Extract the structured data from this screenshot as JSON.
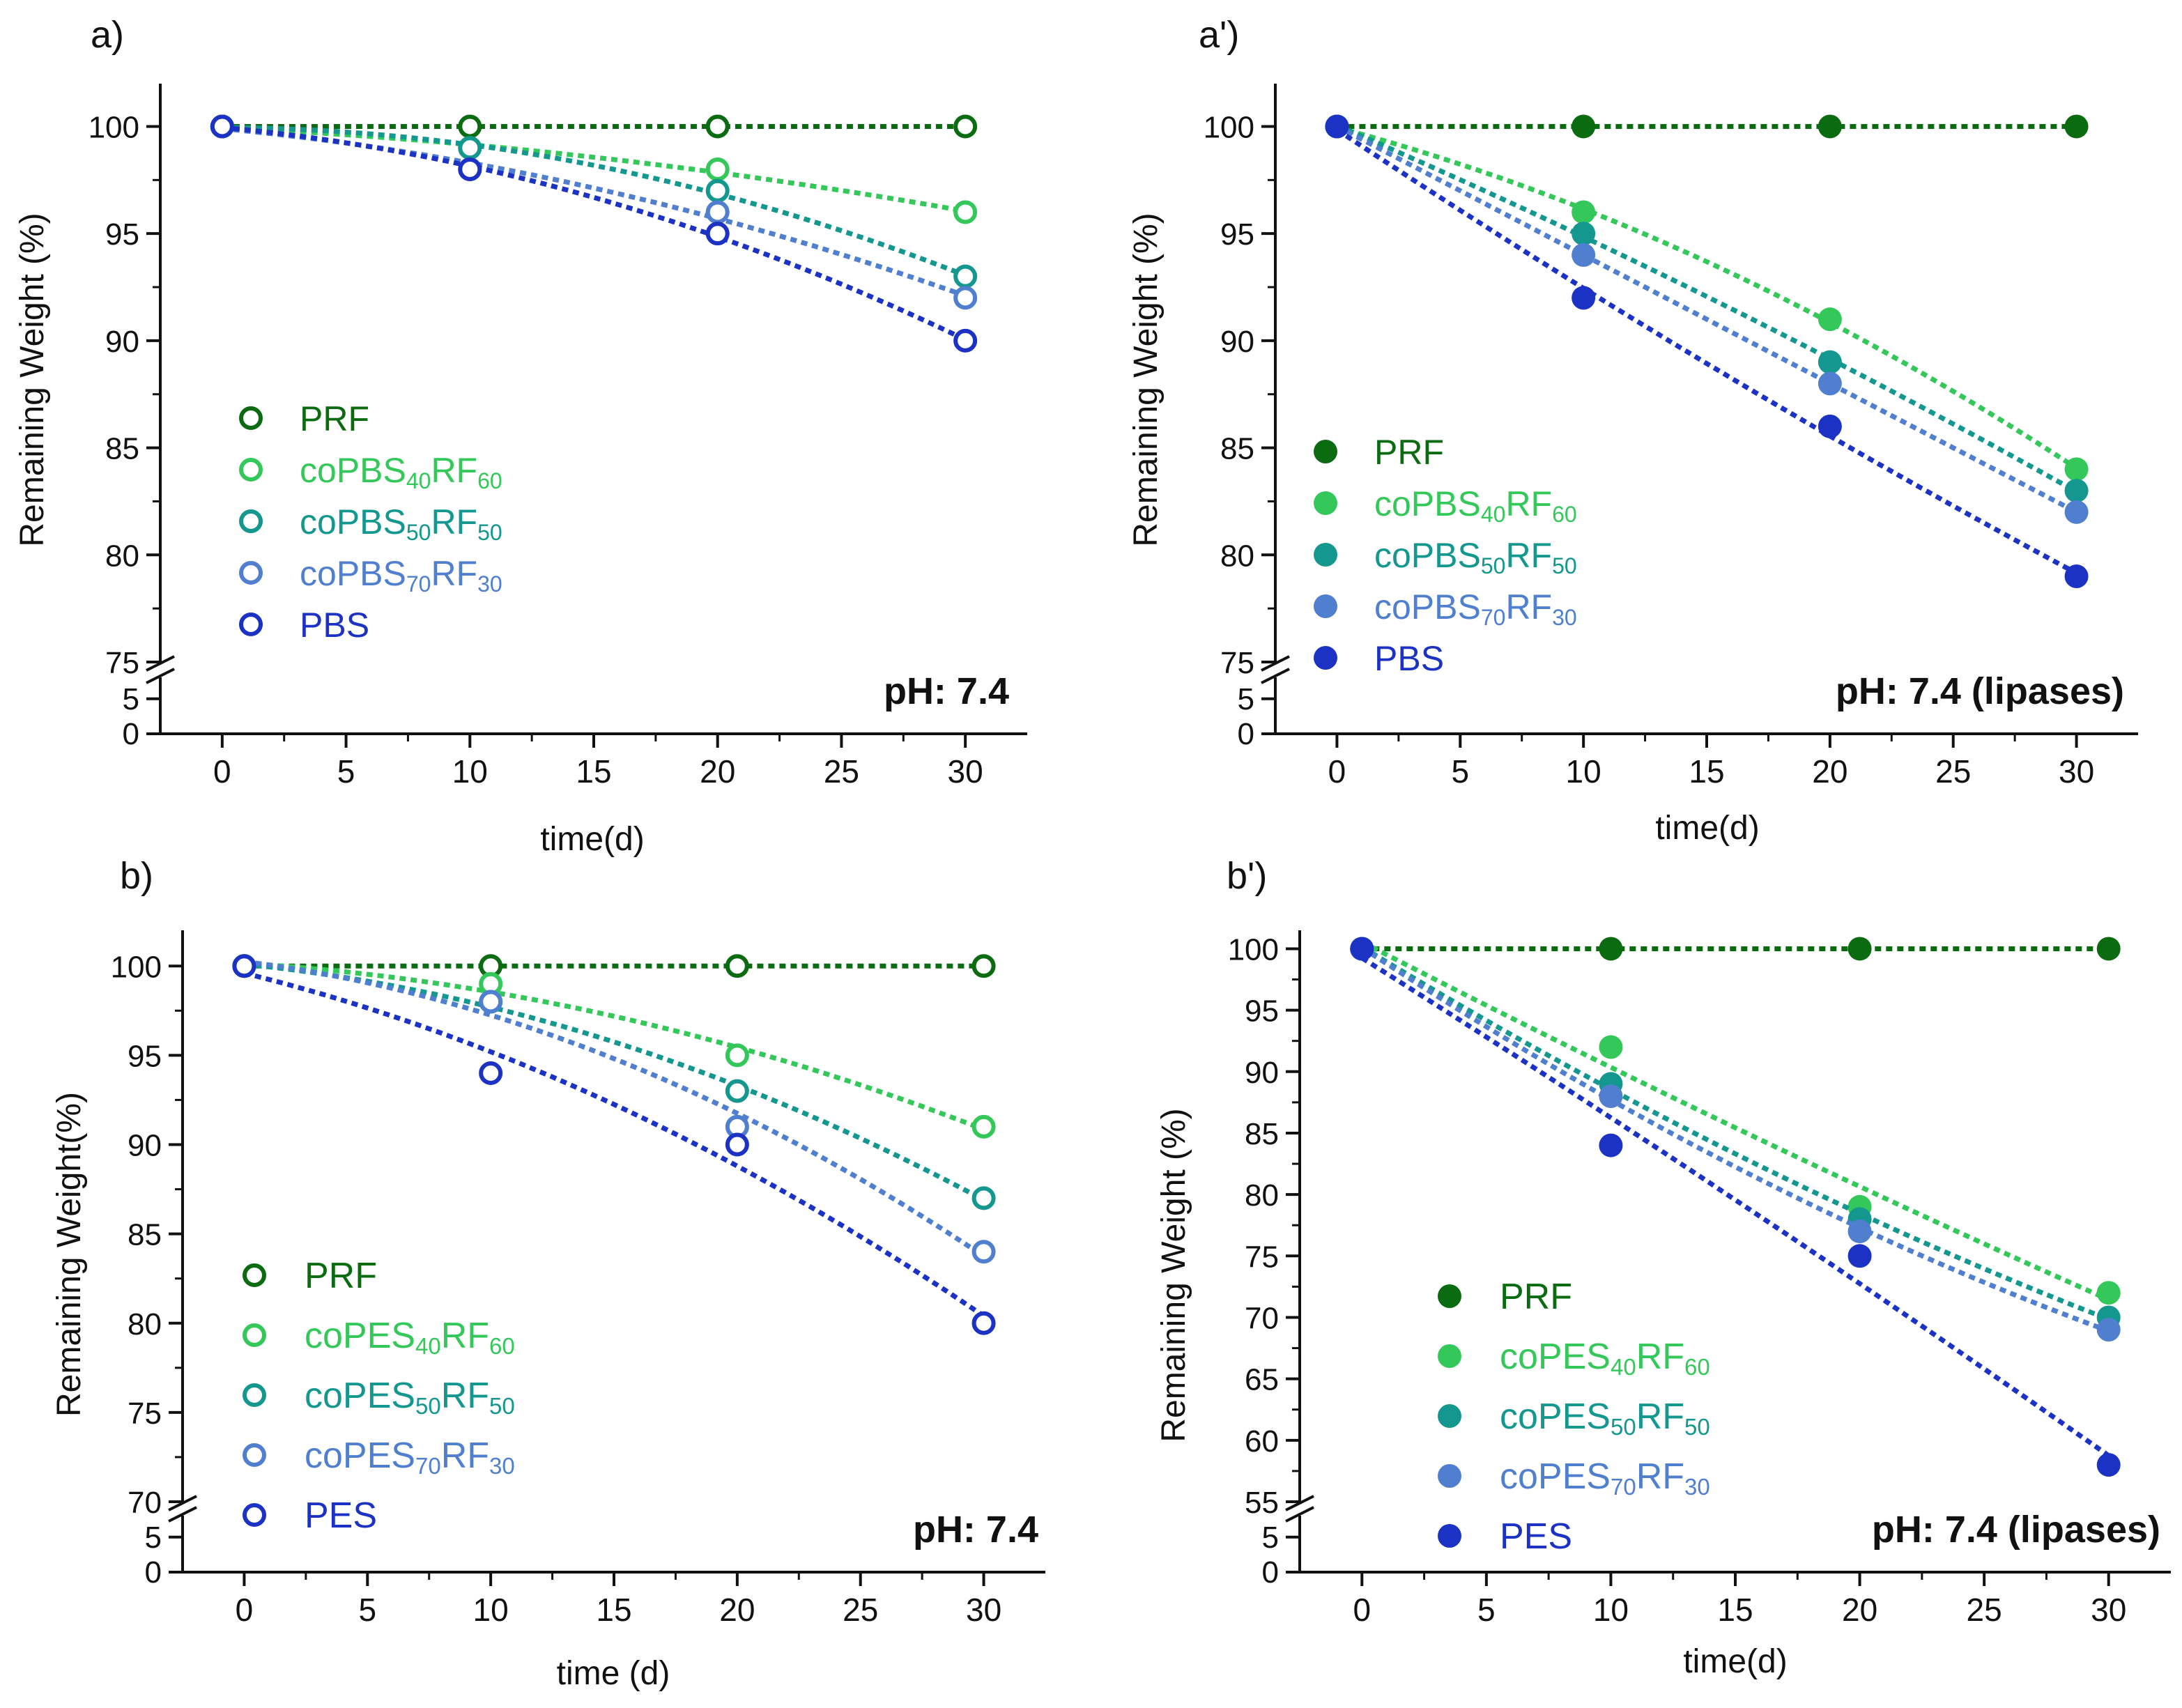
{
  "colors": {
    "PRF": "#0b6b10",
    "c40": "#34c85a",
    "c50": "#13978f",
    "c70": "#4f7fce",
    "base": "#1c32c4"
  },
  "chart_data": [
    {
      "type": "line",
      "panel_label": "a)",
      "xlabel": "time(d)",
      "ylabel": "Remaining Weight (%)",
      "condition": "pH: 7.4",
      "marker": "open",
      "x": [
        0,
        10,
        20,
        30
      ],
      "xlim": [
        -2.5,
        32.5
      ],
      "x_ticks": [
        "0",
        "5",
        "10",
        "15",
        "20",
        "25",
        "30"
      ],
      "y_upper_range": [
        75,
        102
      ],
      "y_upper_ticks": [
        "75",
        "80",
        "85",
        "90",
        "95",
        "100"
      ],
      "y_lower_ticks": [
        "0",
        "5"
      ],
      "series": [
        {
          "name": "PRF",
          "color_key": "PRF",
          "legend_main": "PRF",
          "legend_sub1": "",
          "legend_mid": "",
          "legend_sub2": "",
          "values": [
            100,
            100,
            100,
            100
          ]
        },
        {
          "name": "coPBS40RF60",
          "color_key": "c40",
          "legend_main": "coPBS",
          "legend_sub1": "40",
          "legend_mid": "RF",
          "legend_sub2": "60",
          "values": [
            100,
            99,
            98,
            96
          ]
        },
        {
          "name": "coPBS50RF50",
          "color_key": "c50",
          "legend_main": "coPBS",
          "legend_sub1": "50",
          "legend_mid": "RF",
          "legend_sub2": "50",
          "values": [
            100,
            99,
            97,
            93
          ]
        },
        {
          "name": "coPBS70RF30",
          "color_key": "c70",
          "legend_main": "coPBS",
          "legend_sub1": "70",
          "legend_mid": "RF",
          "legend_sub2": "30",
          "values": [
            100,
            98,
            96,
            92
          ]
        },
        {
          "name": "PBS",
          "color_key": "base",
          "legend_main": "PBS",
          "legend_sub1": "",
          "legend_mid": "",
          "legend_sub2": "",
          "values": [
            100,
            98,
            95,
            90
          ]
        }
      ]
    },
    {
      "type": "line",
      "panel_label": "a')",
      "xlabel": "time(d)",
      "ylabel": "Remaining Weight (%)",
      "condition": "pH: 7.4 (lipases)",
      "marker": "filled",
      "x": [
        0,
        10,
        20,
        30
      ],
      "xlim": [
        -2.5,
        32.5
      ],
      "x_ticks": [
        "0",
        "5",
        "10",
        "15",
        "20",
        "25",
        "30"
      ],
      "y_upper_range": [
        75,
        102
      ],
      "y_upper_ticks": [
        "75",
        "80",
        "85",
        "90",
        "95",
        "100"
      ],
      "y_lower_ticks": [
        "0",
        "5"
      ],
      "series": [
        {
          "name": "PRF",
          "color_key": "PRF",
          "legend_main": "PRF",
          "legend_sub1": "",
          "legend_mid": "",
          "legend_sub2": "",
          "values": [
            100,
            100,
            100,
            100
          ]
        },
        {
          "name": "coPBS40RF60",
          "color_key": "c40",
          "legend_main": "coPBS",
          "legend_sub1": "40",
          "legend_mid": "RF",
          "legend_sub2": "60",
          "values": [
            100,
            96,
            91,
            84
          ]
        },
        {
          "name": "coPBS50RF50",
          "color_key": "c50",
          "legend_main": "coPBS",
          "legend_sub1": "50",
          "legend_mid": "RF",
          "legend_sub2": "50",
          "values": [
            100,
            95,
            89,
            83
          ]
        },
        {
          "name": "coPBS70RF30",
          "color_key": "c70",
          "legend_main": "coPBS",
          "legend_sub1": "70",
          "legend_mid": "RF",
          "legend_sub2": "30",
          "values": [
            100,
            94,
            88,
            82
          ]
        },
        {
          "name": "PBS",
          "color_key": "base",
          "legend_main": "PBS",
          "legend_sub1": "",
          "legend_mid": "",
          "legend_sub2": "",
          "values": [
            100,
            92,
            86,
            79
          ]
        }
      ]
    },
    {
      "type": "line",
      "panel_label": "b)",
      "xlabel": "time (d)",
      "ylabel": "Remaining Weight(%)",
      "condition": "pH: 7.4",
      "marker": "open",
      "x": [
        0,
        10,
        20,
        30
      ],
      "xlim": [
        -2.5,
        32.5
      ],
      "x_ticks": [
        "0",
        "5",
        "10",
        "15",
        "20",
        "25",
        "30"
      ],
      "y_upper_range": [
        70,
        102
      ],
      "y_upper_ticks": [
        "70",
        "75",
        "80",
        "85",
        "90",
        "95",
        "100"
      ],
      "y_lower_ticks": [
        "0",
        "5"
      ],
      "series": [
        {
          "name": "PRF",
          "color_key": "PRF",
          "legend_main": "PRF",
          "legend_sub1": "",
          "legend_mid": "",
          "legend_sub2": "",
          "values": [
            100,
            100,
            100,
            100
          ]
        },
        {
          "name": "coPES40RF60",
          "color_key": "c40",
          "legend_main": "coPES",
          "legend_sub1": "40",
          "legend_mid": "RF",
          "legend_sub2": "60",
          "values": [
            100,
            99,
            95,
            91
          ]
        },
        {
          "name": "coPES50RF50",
          "color_key": "c50",
          "legend_main": "coPES",
          "legend_sub1": "50",
          "legend_mid": "RF",
          "legend_sub2": "50",
          "values": [
            100,
            98,
            93,
            87
          ]
        },
        {
          "name": "coPES70RF30",
          "color_key": "c70",
          "legend_main": "coPES",
          "legend_sub1": "70",
          "legend_mid": "RF",
          "legend_sub2": "30",
          "values": [
            100,
            98,
            91,
            84
          ]
        },
        {
          "name": "PES",
          "color_key": "base",
          "legend_main": "PES",
          "legend_sub1": "",
          "legend_mid": "",
          "legend_sub2": "",
          "values": [
            100,
            94,
            90,
            80
          ]
        }
      ]
    },
    {
      "type": "line",
      "panel_label": "b')",
      "xlabel": "time(d)",
      "ylabel": "Remaining Weight (%)",
      "condition": "pH: 7.4 (lipases)",
      "marker": "filled",
      "x": [
        0,
        10,
        20,
        30
      ],
      "xlim": [
        -2.5,
        32.5
      ],
      "x_ticks": [
        "0",
        "5",
        "10",
        "15",
        "20",
        "25",
        "30"
      ],
      "y_upper_range": [
        55,
        101.5
      ],
      "y_upper_ticks": [
        "55",
        "60",
        "65",
        "70",
        "75",
        "80",
        "85",
        "90",
        "95",
        "100"
      ],
      "y_lower_ticks": [
        "0",
        "5"
      ],
      "series": [
        {
          "name": "PRF",
          "color_key": "PRF",
          "legend_main": "PRF",
          "legend_sub1": "",
          "legend_mid": "",
          "legend_sub2": "",
          "values": [
            100,
            100,
            100,
            100
          ]
        },
        {
          "name": "coPES40RF60",
          "color_key": "c40",
          "legend_main": "coPES",
          "legend_sub1": "40",
          "legend_mid": "RF",
          "legend_sub2": "60",
          "values": [
            100,
            92,
            79,
            72
          ]
        },
        {
          "name": "coPES50RF50",
          "color_key": "c50",
          "legend_main": "coPES",
          "legend_sub1": "50",
          "legend_mid": "RF",
          "legend_sub2": "50",
          "values": [
            100,
            89,
            78,
            70
          ]
        },
        {
          "name": "coPES70RF30",
          "color_key": "c70",
          "legend_main": "coPES",
          "legend_sub1": "70",
          "legend_mid": "RF",
          "legend_sub2": "30",
          "values": [
            100,
            88,
            77,
            69
          ]
        },
        {
          "name": "PES",
          "color_key": "base",
          "legend_main": "PES",
          "legend_sub1": "",
          "legend_mid": "",
          "legend_sub2": "",
          "values": [
            100,
            84,
            75,
            58
          ]
        }
      ]
    }
  ]
}
